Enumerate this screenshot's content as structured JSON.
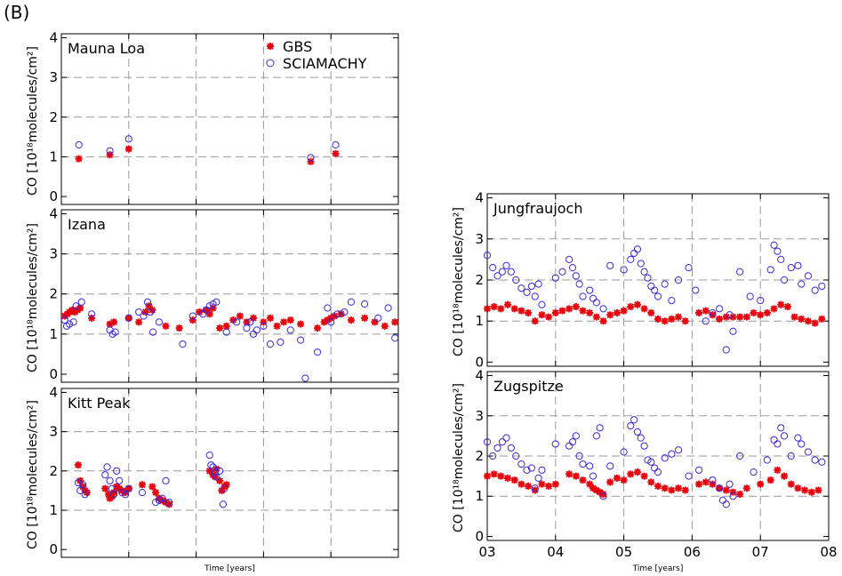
{
  "figure_label": "(B)",
  "colors": {
    "gbs": "#e8000b",
    "sciamachy": "#3b2bd6",
    "grid": "#9a9a9a",
    "axis": "#000000"
  },
  "legend": {
    "gbs": "GBS",
    "sciamachy": "SCIAMACHY"
  },
  "chart_data": [
    {
      "type": "scatter",
      "title": "Mauna Loa",
      "ylabel": "CO [10¹⁸molecules/cm²]",
      "xlim": [
        3,
        8
      ],
      "ylim": [
        -0.2,
        4.1
      ],
      "yticks": [
        "0",
        "1",
        "2",
        "3",
        "4"
      ],
      "grid": true,
      "legend": "top-center",
      "series": [
        {
          "name": "GBS",
          "marker": "star",
          "x": [
            3.26,
            3.72,
            4.0,
            6.7,
            7.07
          ],
          "y": [
            0.95,
            1.05,
            1.2,
            0.88,
            1.08
          ]
        },
        {
          "name": "SCIAMACHY",
          "marker": "circle",
          "x": [
            3.26,
            3.72,
            4.0,
            6.7,
            7.07
          ],
          "y": [
            1.3,
            1.15,
            1.45,
            0.98,
            1.3
          ]
        }
      ]
    },
    {
      "type": "scatter",
      "title": "Izana",
      "ylabel": "CO [10¹⁸molecules/cm²]",
      "xlim": [
        3,
        8
      ],
      "ylim": [
        -0.2,
        4.1
      ],
      "yticks": [
        "0",
        "1",
        "2",
        "3",
        "4"
      ],
      "grid": true,
      "series": [
        {
          "name": "GBS",
          "marker": "star",
          "x": [
            3.05,
            3.09,
            3.12,
            3.16,
            3.2,
            3.24,
            3.28,
            3.45,
            3.72,
            3.78,
            4.0,
            4.15,
            4.25,
            4.3,
            4.35,
            4.55,
            4.75,
            4.95,
            5.05,
            5.15,
            5.2,
            5.25,
            5.35,
            5.45,
            5.55,
            5.65,
            5.75,
            5.85,
            6.0,
            6.1,
            6.2,
            6.3,
            6.4,
            6.55,
            6.8,
            6.9,
            6.95,
            7.0,
            7.05,
            7.15,
            7.3,
            7.5,
            7.65,
            7.8,
            7.95
          ],
          "y": [
            1.45,
            1.5,
            1.55,
            1.6,
            1.55,
            1.6,
            1.65,
            1.4,
            1.25,
            1.3,
            1.4,
            1.3,
            1.55,
            1.7,
            1.6,
            1.2,
            1.15,
            1.35,
            1.55,
            1.6,
            1.5,
            1.65,
            1.15,
            1.2,
            1.35,
            1.45,
            1.3,
            1.4,
            1.3,
            1.4,
            1.2,
            1.3,
            1.35,
            1.25,
            1.15,
            1.3,
            1.35,
            1.4,
            1.45,
            1.5,
            1.35,
            1.4,
            1.3,
            1.2,
            1.3
          ]
        },
        {
          "name": "SCIAMACHY",
          "marker": "circle",
          "x": [
            3.05,
            3.08,
            3.12,
            3.18,
            3.22,
            3.3,
            3.45,
            3.72,
            3.76,
            3.8,
            4.0,
            4.15,
            4.22,
            4.28,
            4.32,
            4.36,
            4.45,
            4.8,
            4.95,
            5.1,
            5.15,
            5.2,
            5.25,
            5.3,
            5.45,
            5.6,
            5.75,
            5.8,
            5.85,
            5.9,
            6.0,
            6.1,
            6.25,
            6.4,
            6.55,
            6.62,
            6.8,
            6.95,
            7.0,
            7.1,
            7.2,
            7.3,
            7.5,
            7.7,
            7.85,
            7.95
          ],
          "y": [
            1.35,
            1.2,
            1.25,
            1.3,
            1.7,
            1.8,
            1.5,
            1.1,
            1.0,
            1.05,
            1.4,
            1.55,
            1.45,
            1.8,
            1.55,
            1.05,
            1.3,
            0.75,
            1.45,
            1.5,
            1.6,
            1.7,
            1.75,
            1.8,
            1.05,
            1.3,
            1.15,
            1.3,
            1.0,
            1.1,
            1.2,
            0.75,
            0.8,
            1.1,
            0.85,
            -0.1,
            0.55,
            1.65,
            1.3,
            1.5,
            1.55,
            1.8,
            1.75,
            1.4,
            1.65,
            0.9
          ]
        }
      ]
    },
    {
      "type": "scatter",
      "title": "Kitt Peak",
      "ylabel": "CO [10¹⁸molecules/cm²]",
      "xlabel": "Time [years]",
      "xlim": [
        3,
        8
      ],
      "ylim": [
        -0.2,
        4.1
      ],
      "yticks": [
        "0",
        "1",
        "2",
        "3",
        "4"
      ],
      "grid": true,
      "series": [
        {
          "name": "GBS",
          "marker": "star",
          "x": [
            3.25,
            3.28,
            3.32,
            3.35,
            3.38,
            3.65,
            3.7,
            3.72,
            3.75,
            3.78,
            3.82,
            3.86,
            3.9,
            3.95,
            4.0,
            4.2,
            4.35,
            4.4,
            4.45,
            4.5,
            4.55,
            4.6,
            5.2,
            5.25,
            5.28,
            5.3,
            5.35,
            5.38,
            5.42,
            5.45
          ],
          "y": [
            2.15,
            1.75,
            1.6,
            1.5,
            1.45,
            1.55,
            1.4,
            1.3,
            1.35,
            1.45,
            1.6,
            1.55,
            1.5,
            1.45,
            1.55,
            1.65,
            1.6,
            1.45,
            1.3,
            1.25,
            1.2,
            1.15,
            2.0,
            1.9,
            1.85,
            2.05,
            1.75,
            1.5,
            1.6,
            1.65
          ]
        },
        {
          "name": "SCIAMACHY",
          "marker": "circle",
          "x": [
            3.25,
            3.28,
            3.32,
            3.35,
            3.65,
            3.68,
            3.72,
            3.75,
            3.78,
            3.82,
            3.86,
            3.9,
            3.95,
            4.0,
            4.2,
            4.4,
            4.45,
            4.5,
            4.55,
            4.6,
            5.2,
            5.22,
            5.25,
            5.28,
            5.3,
            5.35,
            5.4,
            5.42
          ],
          "y": [
            1.7,
            1.5,
            1.65,
            1.4,
            1.9,
            2.1,
            1.75,
            1.55,
            1.4,
            2.0,
            1.75,
            1.45,
            1.4,
            1.55,
            1.45,
            1.2,
            1.25,
            1.3,
            1.75,
            1.2,
            2.4,
            2.15,
            2.1,
            1.95,
            1.85,
            2.0,
            1.15,
            1.55
          ]
        }
      ]
    },
    {
      "type": "scatter",
      "title": "Jungfraujoch",
      "ylabel": "CO [10¹⁸molecules/cm²]",
      "xlim": [
        3,
        8
      ],
      "ylim": [
        -0.1,
        4.1
      ],
      "yticks": [
        "0",
        "1",
        "2",
        "3",
        "4"
      ],
      "grid": true,
      "series": [
        {
          "name": "GBS",
          "marker": "star",
          "x": [
            3.0,
            3.1,
            3.2,
            3.3,
            3.4,
            3.5,
            3.6,
            3.7,
            3.8,
            3.9,
            4.0,
            4.1,
            4.2,
            4.3,
            4.4,
            4.5,
            4.6,
            4.7,
            4.8,
            4.9,
            5.0,
            5.1,
            5.2,
            5.3,
            5.4,
            5.5,
            5.6,
            5.7,
            5.8,
            5.9,
            6.1,
            6.2,
            6.3,
            6.4,
            6.5,
            6.6,
            6.7,
            6.8,
            6.9,
            7.0,
            7.1,
            7.2,
            7.3,
            7.4,
            7.5,
            7.6,
            7.7,
            7.8,
            7.9
          ],
          "y": [
            1.3,
            1.35,
            1.3,
            1.4,
            1.3,
            1.25,
            1.2,
            1.0,
            1.15,
            1.1,
            1.2,
            1.25,
            1.3,
            1.35,
            1.25,
            1.2,
            1.1,
            1.0,
            1.15,
            1.2,
            1.25,
            1.35,
            1.4,
            1.3,
            1.2,
            1.05,
            1.0,
            1.05,
            1.1,
            1.0,
            1.2,
            1.25,
            1.15,
            1.05,
            1.1,
            1.1,
            1.1,
            1.1,
            1.2,
            1.15,
            1.2,
            1.3,
            1.4,
            1.35,
            1.1,
            1.05,
            1.0,
            0.95,
            1.05
          ]
        },
        {
          "name": "SCIAMACHY",
          "marker": "circle",
          "x": [
            3.0,
            3.08,
            3.15,
            3.22,
            3.28,
            3.35,
            3.42,
            3.5,
            3.58,
            3.65,
            3.7,
            3.75,
            3.8,
            4.0,
            4.1,
            4.2,
            4.25,
            4.3,
            4.35,
            4.4,
            4.5,
            4.55,
            4.6,
            4.7,
            4.8,
            5.0,
            5.1,
            5.15,
            5.2,
            5.25,
            5.3,
            5.35,
            5.4,
            5.45,
            5.5,
            5.6,
            5.7,
            5.8,
            5.95,
            6.05,
            6.2,
            6.3,
            6.4,
            6.5,
            6.55,
            6.6,
            6.7,
            6.85,
            7.0,
            7.15,
            7.2,
            7.25,
            7.3,
            7.35,
            7.45,
            7.55,
            7.6,
            7.7,
            7.8,
            7.9
          ],
          "y": [
            2.6,
            2.3,
            2.1,
            2.2,
            2.35,
            2.2,
            2.0,
            1.8,
            1.7,
            1.85,
            1.6,
            1.9,
            1.4,
            2.05,
            2.2,
            2.5,
            2.3,
            2.1,
            1.9,
            1.6,
            1.75,
            1.55,
            1.45,
            1.3,
            2.35,
            2.25,
            2.5,
            2.65,
            2.75,
            2.4,
            2.2,
            2.05,
            1.85,
            1.75,
            1.6,
            1.9,
            1.5,
            2.0,
            2.3,
            1.75,
            1.0,
            1.2,
            1.3,
            0.3,
            1.15,
            0.75,
            2.2,
            1.6,
            1.5,
            2.25,
            2.85,
            2.7,
            2.5,
            2.0,
            2.3,
            2.35,
            1.9,
            2.1,
            1.75,
            1.85
          ]
        }
      ]
    },
    {
      "type": "scatter",
      "title": "Zugspitze",
      "ylabel": "CO [10¹⁸molecules/cm²]",
      "xlabel": "Time [years]",
      "xlim": [
        3,
        8
      ],
      "xticks": [
        "03",
        "04",
        "05",
        "06",
        "07",
        "08"
      ],
      "ylim": [
        -0.1,
        4.1
      ],
      "yticks": [
        "0",
        "1",
        "2",
        "3",
        "4"
      ],
      "grid": true,
      "series": [
        {
          "name": "GBS",
          "marker": "star",
          "x": [
            3.0,
            3.1,
            3.2,
            3.3,
            3.4,
            3.5,
            3.6,
            3.7,
            3.8,
            3.9,
            4.0,
            4.2,
            4.3,
            4.4,
            4.5,
            4.55,
            4.6,
            4.65,
            4.7,
            4.8,
            4.9,
            5.0,
            5.1,
            5.2,
            5.3,
            5.4,
            5.5,
            5.6,
            5.7,
            5.8,
            5.9,
            6.1,
            6.2,
            6.3,
            6.4,
            6.5,
            6.6,
            6.7,
            6.8,
            7.0,
            7.15,
            7.25,
            7.35,
            7.45,
            7.55,
            7.65,
            7.75,
            7.85
          ],
          "y": [
            1.5,
            1.55,
            1.5,
            1.45,
            1.4,
            1.3,
            1.25,
            1.15,
            1.3,
            1.25,
            1.3,
            1.55,
            1.5,
            1.4,
            1.3,
            1.2,
            1.15,
            1.1,
            1.05,
            1.35,
            1.45,
            1.4,
            1.55,
            1.6,
            1.5,
            1.35,
            1.25,
            1.2,
            1.15,
            1.2,
            1.15,
            1.3,
            1.35,
            1.3,
            1.2,
            1.15,
            1.1,
            1.05,
            1.2,
            1.3,
            1.4,
            1.65,
            1.5,
            1.3,
            1.2,
            1.15,
            1.1,
            1.15
          ]
        },
        {
          "name": "SCIAMACHY",
          "marker": "circle",
          "x": [
            3.0,
            3.08,
            3.15,
            3.22,
            3.28,
            3.35,
            3.42,
            3.5,
            3.58,
            3.65,
            3.7,
            3.75,
            3.8,
            4.0,
            4.2,
            4.25,
            4.3,
            4.35,
            4.4,
            4.5,
            4.55,
            4.6,
            4.65,
            4.7,
            4.8,
            5.0,
            5.1,
            5.15,
            5.2,
            5.25,
            5.3,
            5.35,
            5.4,
            5.45,
            5.5,
            5.6,
            5.7,
            5.8,
            5.95,
            6.1,
            6.3,
            6.4,
            6.45,
            6.5,
            6.55,
            6.6,
            6.7,
            6.9,
            7.1,
            7.2,
            7.25,
            7.3,
            7.35,
            7.45,
            7.55,
            7.6,
            7.7,
            7.8,
            7.9
          ],
          "y": [
            2.35,
            2.0,
            2.2,
            2.35,
            2.45,
            2.2,
            2.0,
            1.8,
            1.65,
            1.7,
            1.2,
            1.45,
            1.65,
            2.3,
            2.25,
            2.35,
            2.5,
            2.0,
            1.8,
            1.75,
            1.5,
            2.5,
            2.7,
            1.0,
            1.75,
            2.1,
            2.75,
            2.9,
            2.6,
            2.45,
            2.25,
            1.9,
            1.85,
            1.7,
            1.6,
            1.95,
            2.05,
            2.15,
            1.5,
            1.65,
            1.4,
            1.2,
            0.9,
            0.8,
            1.3,
            1.0,
            2.0,
            1.6,
            1.9,
            2.4,
            2.3,
            2.7,
            2.5,
            2.0,
            2.45,
            2.3,
            2.1,
            1.9,
            1.85
          ]
        }
      ]
    }
  ]
}
